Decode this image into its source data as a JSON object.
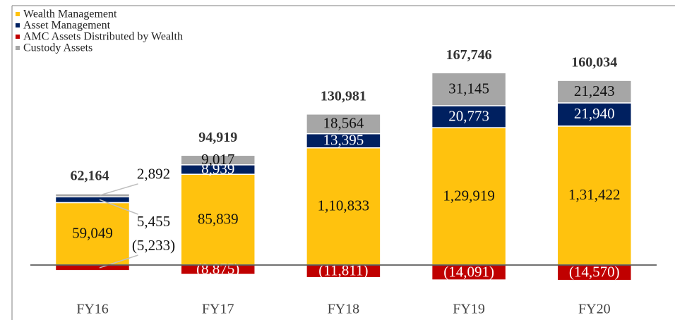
{
  "chart_data": {
    "type": "stacked-bar",
    "categories": [
      "FY16",
      "FY17",
      "FY18",
      "FY19",
      "FY20"
    ],
    "series": [
      {
        "name": "Wealth Management",
        "color": "#FFC20E",
        "values": [
          59049,
          85839,
          110833,
          129919,
          131422
        ],
        "value_labels": [
          "59,049",
          "85,839",
          "1,10,833",
          "1,29,919",
          "1,31,422"
        ]
      },
      {
        "name": "Asset Management",
        "color": "#002060",
        "values": [
          5455,
          8939,
          13395,
          20773,
          21940
        ],
        "value_labels": [
          "5,455",
          "8,939",
          "13,395",
          "20,773",
          "21,940"
        ]
      },
      {
        "name": "AMC Assets Distributed by Wealth",
        "color": "#C00000",
        "values": [
          -5233,
          -8875,
          -11811,
          -14091,
          -14570
        ],
        "value_labels": [
          "(5,233)",
          "(8,875)",
          "(11,811)",
          "(14,091)",
          "(14,570)"
        ]
      },
      {
        "name": "Custody Assets",
        "color": "#A6A6A6",
        "values": [
          2892,
          9017,
          18564,
          31145,
          21243
        ],
        "value_labels": [
          "2,892",
          "9,017",
          "18,564",
          "31,145",
          "21,243"
        ]
      }
    ],
    "totals": {
      "values": [
        62164,
        94919,
        130981,
        167746,
        160034
      ],
      "value_labels": [
        "62,164",
        "94,919",
        "130,981",
        "167,746",
        "160,034"
      ]
    },
    "ylim": [
      -40000,
      200000
    ]
  }
}
